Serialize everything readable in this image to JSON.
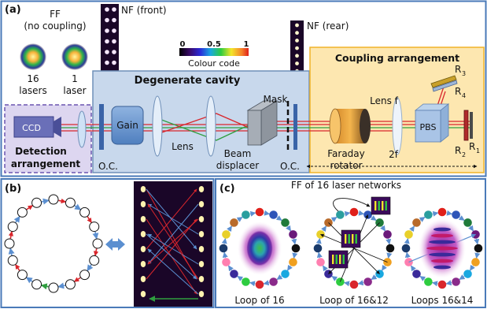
{
  "panel_a": {
    "label": "(a)",
    "ff_title_1": "FF",
    "ff_title_2": "(no coupling)",
    "ff_16_1": "16",
    "ff_16_2": "lasers",
    "ff_1_1": "1",
    "ff_1_2": "laser",
    "nf_front": "NF (front)",
    "nf_rear": "NF (rear)",
    "colorbar": {
      "tick_0": "0",
      "tick_mid": "0.5",
      "tick_1": "1",
      "caption": "Colour code"
    },
    "degenerate_cavity": "Degenerate cavity",
    "coupling_arrangement": "Coupling arrangement",
    "ccd": "CCD",
    "detection_1": "Detection",
    "detection_2": "arrangement",
    "gain": "Gain",
    "lens": "Lens",
    "beam_1": "Beam",
    "beam_2": "displacer",
    "mask": "Mask",
    "oc_left": "O.C.",
    "oc_right": "O.C.",
    "faraday_1": "Faraday",
    "faraday_2": "rotator",
    "lens_f": "Lens f",
    "two_f": "2f",
    "pbs": "PBS",
    "r1": "R",
    "r1_sub": "1",
    "r2": "R",
    "r2_sub": "2",
    "r3": "R",
    "r3_sub": "3",
    "r4": "R",
    "r4_sub": "4"
  },
  "panel_b": {
    "label": "(b)"
  },
  "panel_c": {
    "label": "(c)",
    "title": "FF of 16 laser networks",
    "cap1": "Loop of 16",
    "cap2": "Loop of 16&12",
    "cap3": "Loops 16&14"
  },
  "colors": {
    "frame_border": "#4a7ab8",
    "detection_fill": "#ddd6f0",
    "cavity_fill": "#c8d8ec",
    "coupling_fill": "#fde7b0",
    "coupling_border": "#f0b429",
    "beam_red": "#d9262c",
    "beam_green": "#2f9e3f",
    "arrow_blue": "#5b8fd0"
  }
}
